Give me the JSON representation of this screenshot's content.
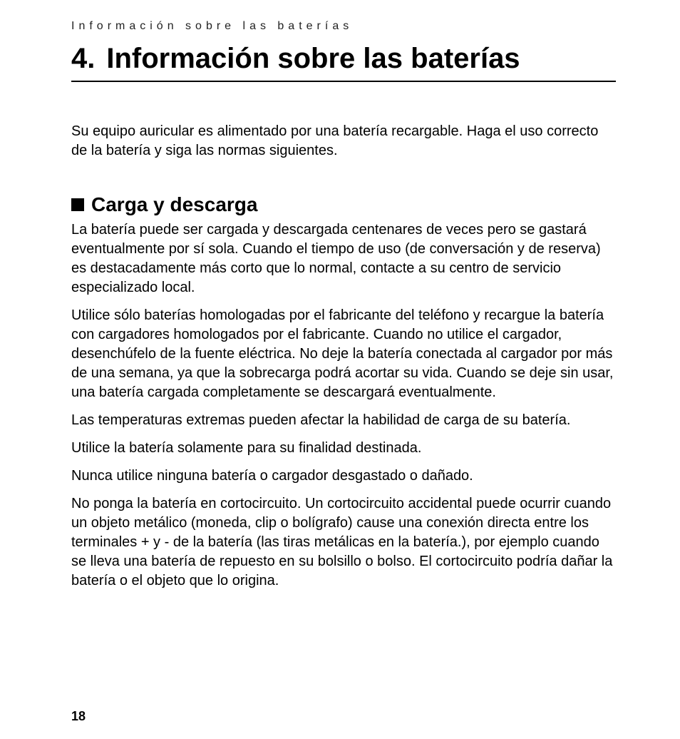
{
  "runningHead": "Información sobre las baterías",
  "chapter": {
    "number": "4.",
    "title": "Información sobre las baterías"
  },
  "intro": "Su equipo auricular es alimentado por una batería recargable. Haga el uso correcto de la batería y siga las normas siguientes.",
  "section": {
    "title": "Carga y descarga",
    "paragraphs": [
      "La batería puede ser cargada y descargada centenares de veces pero se gastará eventualmente por sí sola. Cuando el tiempo de uso (de conversación y de reserva) es destacadamente más corto que lo normal, contacte a su centro de servicio especializado local.",
      "Utilice sólo baterías homologadas por el fabricante del teléfono y recargue la batería con cargadores homologados por el fabricante. Cuando no utilice el cargador, desenchúfelo de la fuente eléctrica. No deje la batería conectada al cargador por más de una semana, ya que la sobrecarga podrá acortar su vida. Cuando se deje sin usar, una batería cargada completamente se descargará eventualmente.",
      "Las temperaturas extremas pueden afectar la habilidad de carga de su batería.",
      "Utilice la batería solamente para su finalidad destinada.",
      "Nunca utilice ninguna batería o cargador desgastado o dañado.",
      "No ponga la batería en cortocircuito. Un cortocircuito accidental puede ocurrir cuando un objeto metálico (moneda, clip o bolígrafo) cause una conexión directa entre los terminales + y - de la batería (las tiras metálicas en la batería.), por ejemplo cuando se lleva una batería de repuesto en su bolsillo o bolso. El cortocircuito podría dañar la batería o el objeto que lo origina."
    ]
  },
  "pageNumber": "18",
  "colors": {
    "text": "#000000",
    "background": "#ffffff",
    "rule": "#000000"
  },
  "fonts": {
    "runningHead_pt": 16,
    "chapterTitle_pt": 40,
    "sectionTitle_pt": 28,
    "body_pt": 20,
    "pageNumber_pt": 18
  }
}
